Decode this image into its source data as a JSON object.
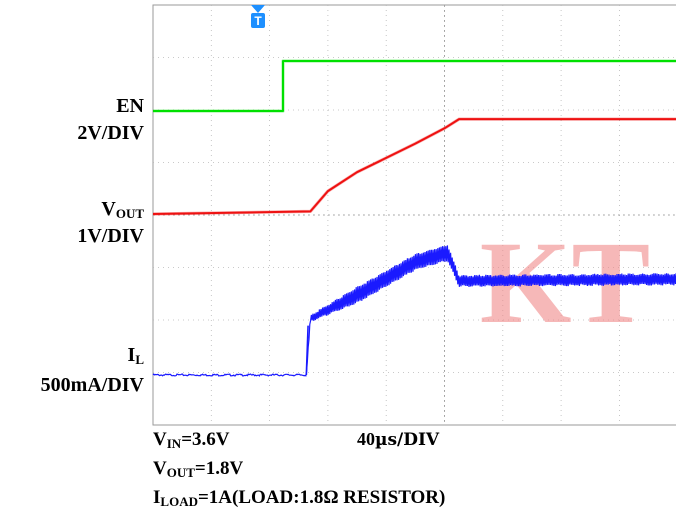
{
  "chart_data": {
    "type": "line",
    "title": "",
    "trigger_marker": "T",
    "channels": [
      {
        "name": "EN",
        "scale": "2V/DIV",
        "color": "#00e000",
        "x": [
          0,
          2.23,
          2.23,
          10
        ],
        "y_div": [
          1.95,
          1.95,
          2.95,
          2.95
        ]
      },
      {
        "name": "VOUT",
        "scale": "1V/DIV",
        "color": "#ee1111",
        "x": [
          0,
          2.7,
          3.0,
          3.5,
          4.0,
          4.5,
          5.0,
          5.25,
          10
        ],
        "y_div": [
          0,
          0.05,
          0.45,
          0.82,
          1.1,
          1.38,
          1.68,
          1.86,
          1.86
        ]
      },
      {
        "name": "IL",
        "scale": "500mA/DIV",
        "color": "#1a1aff",
        "x": [
          0,
          2.63,
          2.7,
          3.5,
          4.5,
          5.05,
          5.25,
          10
        ],
        "y_div": [
          0,
          0,
          1.2,
          1.7,
          2.4,
          2.6,
          2.0,
          2.05
        ],
        "ripple_div": [
          0,
          0,
          0.12,
          0.32,
          0.32,
          0.32,
          0.22,
          0.22
        ]
      }
    ],
    "labels": {
      "en": "EN",
      "en_scale": "2V/DIV",
      "vout_main": "V",
      "vout_sub": "OUT",
      "vout_scale": "1V/DIV",
      "il_main": "I",
      "il_sub": "L",
      "il_scale": "500mA/DIV"
    },
    "time_scale": {
      "value": "40",
      "unit": "µs/DIV"
    },
    "conditions": {
      "vin_main": "V",
      "vin_sub": "IN",
      "vin_value": "=3.6V",
      "vout_main": "V",
      "vout_sub": "OUT",
      "vout_value": "=1.8V",
      "iload_main": "I",
      "iload_sub": "LOAD",
      "iload_value": "=1A(LOAD:1.8Ω RESISTOR)"
    },
    "watermark": "KT",
    "grid": true,
    "divisions": {
      "x": 10,
      "y": 8
    }
  }
}
